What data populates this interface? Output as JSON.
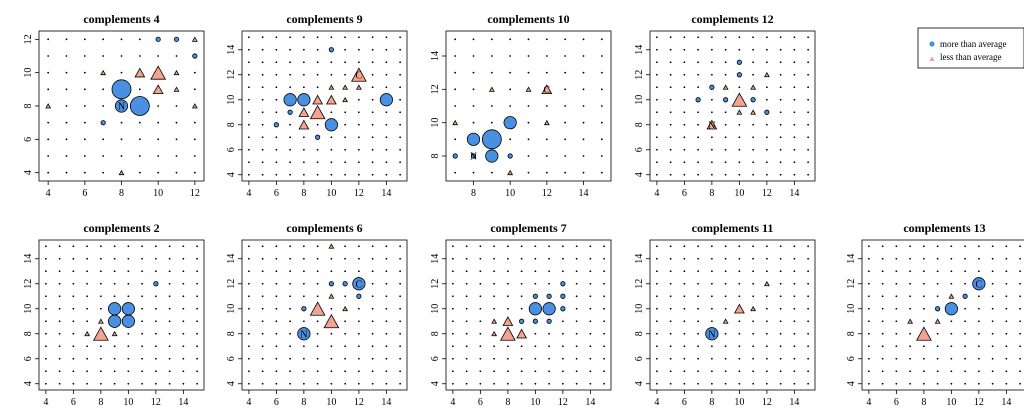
{
  "colors": {
    "more": "#4a90e2",
    "less": "#f4a38f",
    "stroke": "#000000"
  },
  "legend": {
    "position": "top-right",
    "items": [
      {
        "label": "more than average",
        "marker": "circle",
        "color": "#4a90e2"
      },
      {
        "label": "less than average",
        "marker": "triangle",
        "color": "#f4a38f"
      }
    ]
  },
  "chart_data": [
    {
      "type": "scatter",
      "title": "complements 4",
      "xlim": [
        3.5,
        12.5
      ],
      "ylim": [
        3.5,
        12.5
      ],
      "xticks": [
        4,
        6,
        8,
        10,
        12
      ],
      "yticks": [
        4,
        6,
        8,
        10,
        12
      ],
      "markers": [
        {
          "x": 8,
          "y": 9,
          "kind": "more",
          "size": 3
        },
        {
          "x": 9,
          "y": 8,
          "kind": "more",
          "size": 3
        },
        {
          "x": 8,
          "y": 8,
          "kind": "more",
          "size": 2,
          "label": "N"
        },
        {
          "x": 7,
          "y": 7,
          "kind": "more",
          "size": 1
        },
        {
          "x": 10,
          "y": 10,
          "kind": "less",
          "size": 3
        },
        {
          "x": 9,
          "y": 10,
          "kind": "less",
          "size": 2
        },
        {
          "x": 10,
          "y": 9,
          "kind": "less",
          "size": 2
        },
        {
          "x": 7,
          "y": 10,
          "kind": "less",
          "size": 1
        },
        {
          "x": 12,
          "y": 12,
          "kind": "less",
          "size": 1
        },
        {
          "x": 11,
          "y": 10,
          "kind": "less",
          "size": 1
        },
        {
          "x": 11,
          "y": 9,
          "kind": "less",
          "size": 1
        },
        {
          "x": 10,
          "y": 12,
          "kind": "more",
          "size": 1
        },
        {
          "x": 11,
          "y": 12,
          "kind": "more",
          "size": 1
        },
        {
          "x": 12,
          "y": 11,
          "kind": "more",
          "size": 1
        },
        {
          "x": 4,
          "y": 8,
          "kind": "less",
          "size": 1
        },
        {
          "x": 8,
          "y": 4,
          "kind": "less",
          "size": 1
        },
        {
          "x": 12,
          "y": 8,
          "kind": "less",
          "size": 1
        }
      ]
    },
    {
      "type": "scatter",
      "title": "complements 9",
      "xlim": [
        3.5,
        15.5
      ],
      "ylim": [
        3.5,
        15.5
      ],
      "xticks": [
        4,
        6,
        8,
        10,
        12,
        14
      ],
      "yticks": [
        4,
        6,
        8,
        10,
        12,
        14
      ],
      "markers": [
        {
          "x": 12,
          "y": 12,
          "kind": "less",
          "size": 3,
          "label": "C"
        },
        {
          "x": 9,
          "y": 9,
          "kind": "less",
          "size": 3
        },
        {
          "x": 8,
          "y": 8,
          "kind": "less",
          "size": 2
        },
        {
          "x": 9,
          "y": 10,
          "kind": "less",
          "size": 2
        },
        {
          "x": 10,
          "y": 10,
          "kind": "less",
          "size": 2
        },
        {
          "x": 8,
          "y": 9,
          "kind": "less",
          "size": 2
        },
        {
          "x": 11,
          "y": 11,
          "kind": "less",
          "size": 1
        },
        {
          "x": 10,
          "y": 11,
          "kind": "less",
          "size": 1
        },
        {
          "x": 11,
          "y": 10,
          "kind": "less",
          "size": 1
        },
        {
          "x": 12,
          "y": 11,
          "kind": "less",
          "size": 1
        },
        {
          "x": 7,
          "y": 10,
          "kind": "more",
          "size": 2
        },
        {
          "x": 8,
          "y": 10,
          "kind": "more",
          "size": 2
        },
        {
          "x": 10,
          "y": 8,
          "kind": "more",
          "size": 2
        },
        {
          "x": 14,
          "y": 10,
          "kind": "more",
          "size": 2
        },
        {
          "x": 10,
          "y": 14,
          "kind": "more",
          "size": 1
        },
        {
          "x": 6,
          "y": 8,
          "kind": "more",
          "size": 1
        },
        {
          "x": 9,
          "y": 7,
          "kind": "more",
          "size": 1
        },
        {
          "x": 7,
          "y": 9,
          "kind": "more",
          "size": 1
        }
      ]
    },
    {
      "type": "scatter",
      "title": "complements 10",
      "xlim": [
        6.5,
        15.5
      ],
      "ylim": [
        6.5,
        15.5
      ],
      "xticks": [
        8,
        10,
        12,
        14
      ],
      "yticks": [
        8,
        10,
        12,
        14
      ],
      "markers": [
        {
          "x": 9,
          "y": 9,
          "kind": "more",
          "size": 3
        },
        {
          "x": 8,
          "y": 9,
          "kind": "more",
          "size": 2
        },
        {
          "x": 9,
          "y": 8,
          "kind": "more",
          "size": 2
        },
        {
          "x": 10,
          "y": 10,
          "kind": "more",
          "size": 2
        },
        {
          "x": 8,
          "y": 8,
          "kind": "more",
          "size": 1,
          "label": "N"
        },
        {
          "x": 10,
          "y": 8,
          "kind": "more",
          "size": 1
        },
        {
          "x": 7,
          "y": 8,
          "kind": "more",
          "size": 1
        },
        {
          "x": 12,
          "y": 12,
          "kind": "less",
          "size": 2,
          "label": "C"
        },
        {
          "x": 7,
          "y": 10,
          "kind": "less",
          "size": 1
        },
        {
          "x": 9,
          "y": 12,
          "kind": "less",
          "size": 1
        },
        {
          "x": 11,
          "y": 12,
          "kind": "less",
          "size": 1
        },
        {
          "x": 12,
          "y": 10,
          "kind": "less",
          "size": 1
        },
        {
          "x": 10,
          "y": 7,
          "kind": "less",
          "size": 1
        }
      ]
    },
    {
      "type": "scatter",
      "title": "complements 12",
      "xlim": [
        3.5,
        15.5
      ],
      "ylim": [
        3.5,
        15.5
      ],
      "xticks": [
        4,
        6,
        8,
        10,
        12,
        14
      ],
      "yticks": [
        4,
        6,
        8,
        10,
        12,
        14
      ],
      "markers": [
        {
          "x": 10,
          "y": 10,
          "kind": "less",
          "size": 3
        },
        {
          "x": 8,
          "y": 8,
          "kind": "less",
          "size": 2,
          "label": "N"
        },
        {
          "x": 12,
          "y": 12,
          "kind": "less",
          "size": 1
        },
        {
          "x": 11,
          "y": 11,
          "kind": "less",
          "size": 1
        },
        {
          "x": 9,
          "y": 11,
          "kind": "less",
          "size": 1
        },
        {
          "x": 11,
          "y": 9,
          "kind": "less",
          "size": 1
        },
        {
          "x": 10,
          "y": 9,
          "kind": "less",
          "size": 1
        },
        {
          "x": 9,
          "y": 10,
          "kind": "more",
          "size": 1
        },
        {
          "x": 11,
          "y": 10,
          "kind": "more",
          "size": 1
        },
        {
          "x": 10,
          "y": 12,
          "kind": "more",
          "size": 1
        },
        {
          "x": 7,
          "y": 10,
          "kind": "more",
          "size": 1
        },
        {
          "x": 12,
          "y": 9,
          "kind": "more",
          "size": 1
        },
        {
          "x": 10,
          "y": 13,
          "kind": "more",
          "size": 1
        },
        {
          "x": 8,
          "y": 11,
          "kind": "more",
          "size": 1
        }
      ]
    },
    {
      "type": "scatter",
      "title": "complements 2",
      "xlim": [
        3.5,
        15.5
      ],
      "ylim": [
        3.5,
        15.5
      ],
      "xticks": [
        4,
        6,
        8,
        10,
        12,
        14
      ],
      "yticks": [
        4,
        6,
        8,
        10,
        12,
        14
      ],
      "markers": [
        {
          "x": 10,
          "y": 10,
          "kind": "more",
          "size": 2
        },
        {
          "x": 9,
          "y": 10,
          "kind": "more",
          "size": 2
        },
        {
          "x": 9,
          "y": 9,
          "kind": "more",
          "size": 2
        },
        {
          "x": 10,
          "y": 9,
          "kind": "more",
          "size": 2
        },
        {
          "x": 12,
          "y": 12,
          "kind": "more",
          "size": 1
        },
        {
          "x": 8,
          "y": 8,
          "kind": "less",
          "size": 3
        },
        {
          "x": 8,
          "y": 9,
          "kind": "less",
          "size": 1
        },
        {
          "x": 7,
          "y": 8,
          "kind": "less",
          "size": 1
        },
        {
          "x": 9,
          "y": 8,
          "kind": "less",
          "size": 1
        }
      ]
    },
    {
      "type": "scatter",
      "title": "complements 6",
      "xlim": [
        3.5,
        15.5
      ],
      "ylim": [
        3.5,
        15.5
      ],
      "xticks": [
        4,
        6,
        8,
        10,
        12,
        14
      ],
      "yticks": [
        4,
        6,
        8,
        10,
        12,
        14
      ],
      "markers": [
        {
          "x": 9,
          "y": 10,
          "kind": "less",
          "size": 3
        },
        {
          "x": 10,
          "y": 9,
          "kind": "less",
          "size": 3
        },
        {
          "x": 10,
          "y": 11,
          "kind": "less",
          "size": 1
        },
        {
          "x": 11,
          "y": 10,
          "kind": "less",
          "size": 1
        },
        {
          "x": 10,
          "y": 15,
          "kind": "less",
          "size": 1
        },
        {
          "x": 8,
          "y": 8,
          "kind": "more",
          "size": 2,
          "label": "N"
        },
        {
          "x": 12,
          "y": 12,
          "kind": "more",
          "size": 2,
          "label": "C"
        },
        {
          "x": 11,
          "y": 12,
          "kind": "more",
          "size": 1
        },
        {
          "x": 12,
          "y": 11,
          "kind": "more",
          "size": 1
        },
        {
          "x": 8,
          "y": 10,
          "kind": "more",
          "size": 1
        },
        {
          "x": 10,
          "y": 12,
          "kind": "more",
          "size": 1
        }
      ]
    },
    {
      "type": "scatter",
      "title": "complements 7",
      "xlim": [
        3.5,
        15.5
      ],
      "ylim": [
        3.5,
        15.5
      ],
      "xticks": [
        4,
        6,
        8,
        10,
        12,
        14
      ],
      "yticks": [
        4,
        6,
        8,
        10,
        12,
        14
      ],
      "markers": [
        {
          "x": 8,
          "y": 8,
          "kind": "less",
          "size": 3
        },
        {
          "x": 9,
          "y": 8,
          "kind": "less",
          "size": 2
        },
        {
          "x": 8,
          "y": 9,
          "kind": "less",
          "size": 2
        },
        {
          "x": 7,
          "y": 8,
          "kind": "less",
          "size": 1
        },
        {
          "x": 7,
          "y": 9,
          "kind": "less",
          "size": 1
        },
        {
          "x": 10,
          "y": 10,
          "kind": "more",
          "size": 2
        },
        {
          "x": 11,
          "y": 10,
          "kind": "more",
          "size": 2
        },
        {
          "x": 12,
          "y": 10,
          "kind": "more",
          "size": 1
        },
        {
          "x": 11,
          "y": 11,
          "kind": "more",
          "size": 1
        },
        {
          "x": 12,
          "y": 11,
          "kind": "more",
          "size": 1
        },
        {
          "x": 9,
          "y": 9,
          "kind": "more",
          "size": 1
        },
        {
          "x": 10,
          "y": 9,
          "kind": "more",
          "size": 1
        },
        {
          "x": 11,
          "y": 9,
          "kind": "more",
          "size": 1
        },
        {
          "x": 12,
          "y": 12,
          "kind": "more",
          "size": 1
        },
        {
          "x": 10,
          "y": 11,
          "kind": "more",
          "size": 1
        }
      ]
    },
    {
      "type": "scatter",
      "title": "complements 11",
      "xlim": [
        3.5,
        15.5
      ],
      "ylim": [
        3.5,
        15.5
      ],
      "xticks": [
        4,
        6,
        8,
        10,
        12,
        14
      ],
      "yticks": [
        4,
        6,
        8,
        10,
        12,
        14
      ],
      "markers": [
        {
          "x": 8,
          "y": 8,
          "kind": "more",
          "size": 2,
          "label": "N"
        },
        {
          "x": 10,
          "y": 10,
          "kind": "less",
          "size": 2
        },
        {
          "x": 9,
          "y": 9,
          "kind": "less",
          "size": 1
        },
        {
          "x": 12,
          "y": 12,
          "kind": "less",
          "size": 1
        },
        {
          "x": 11,
          "y": 10,
          "kind": "less",
          "size": 1
        }
      ]
    },
    {
      "type": "scatter",
      "title": "complements 13",
      "xlim": [
        3.5,
        15.5
      ],
      "ylim": [
        3.5,
        15.5
      ],
      "xticks": [
        4,
        6,
        8,
        10,
        12,
        14
      ],
      "yticks": [
        4,
        6,
        8,
        10,
        12,
        14
      ],
      "markers": [
        {
          "x": 12,
          "y": 12,
          "kind": "more",
          "size": 2,
          "label": "C"
        },
        {
          "x": 10,
          "y": 10,
          "kind": "more",
          "size": 2
        },
        {
          "x": 11,
          "y": 11,
          "kind": "more",
          "size": 1
        },
        {
          "x": 8,
          "y": 8,
          "kind": "less",
          "size": 3
        },
        {
          "x": 9,
          "y": 9,
          "kind": "less",
          "size": 1
        },
        {
          "x": 7,
          "y": 9,
          "kind": "less",
          "size": 1
        },
        {
          "x": 10,
          "y": 11,
          "kind": "less",
          "size": 1
        },
        {
          "x": 9,
          "y": 10,
          "kind": "more",
          "size": 1
        }
      ]
    }
  ]
}
